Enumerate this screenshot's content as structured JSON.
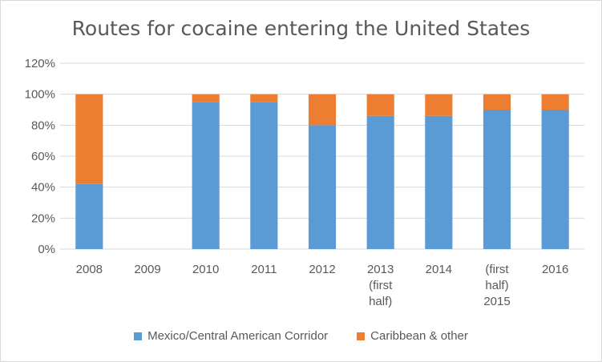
{
  "chart_data": {
    "type": "bar",
    "stacked": true,
    "title": "Routes for cocaine entering the United States",
    "xlabel": "",
    "ylabel": "",
    "categories": [
      [
        "2008"
      ],
      [
        "2009"
      ],
      [
        "2010"
      ],
      [
        "2011"
      ],
      [
        "2012"
      ],
      [
        "2013",
        "(first",
        "half)"
      ],
      [
        "2014"
      ],
      [
        "(first",
        "half)",
        "2015"
      ],
      [
        "2016"
      ]
    ],
    "series": [
      {
        "name": "Mexico/Central American Corridor",
        "color": "#5b9bd5",
        "values": [
          42,
          null,
          95,
          95,
          80,
          86,
          86,
          90,
          90
        ]
      },
      {
        "name": "Caribbean & other",
        "color": "#ed7d31",
        "values": [
          58,
          null,
          5,
          5,
          20,
          14,
          14,
          10,
          10
        ]
      }
    ],
    "ylim": [
      0,
      120
    ],
    "yticks": [
      "0%",
      "20%",
      "40%",
      "60%",
      "80%",
      "100%",
      "120%"
    ],
    "ytick_values": [
      0,
      20,
      40,
      60,
      80,
      100,
      120
    ],
    "grid": true,
    "legend_position": "bottom"
  }
}
